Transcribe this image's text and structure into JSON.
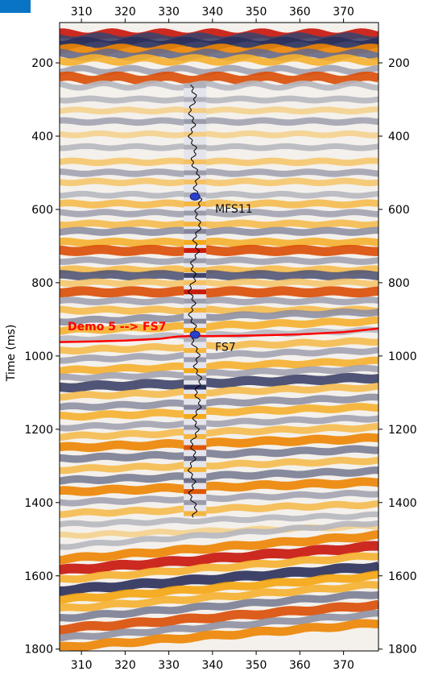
{
  "colors": {
    "corner_badge": "#0a74c4",
    "horizon": "#ff0000",
    "well_marker": "#2b3fcf",
    "well_log": "#000000",
    "seismic_positive": "#f5a000",
    "seismic_negative": "#2a2f5a",
    "seismic_zero": "#f4f1ec"
  },
  "chart_data": {
    "type": "heatmap",
    "subtype": "seismic-section-with-well",
    "ylabel": "Time (ms)",
    "xlabel": "",
    "xlim": [
      305,
      378
    ],
    "ylim": [
      1805,
      90
    ],
    "y_inverted": true,
    "x_ticks": [
      310,
      320,
      330,
      340,
      350,
      360,
      370
    ],
    "x_tick_labels": [
      "310",
      "320",
      "330",
      "340",
      "350",
      "360",
      "370"
    ],
    "y_ticks": [
      200,
      400,
      600,
      800,
      1000,
      1200,
      1400,
      1600,
      1800
    ],
    "y_tick_labels": [
      "200",
      "400",
      "600",
      "800",
      "1000",
      "1200",
      "1400",
      "1600",
      "1800"
    ],
    "ticks_on_all_sides": true,
    "grid": false,
    "horizon": {
      "label": "Demo 5 --> FS7",
      "x": [
        305,
        310,
        320,
        328,
        332,
        336,
        340,
        350,
        360,
        370,
        378
      ],
      "y": [
        962,
        961,
        958,
        953,
        947,
        945,
        946,
        944,
        941,
        935,
        925
      ]
    },
    "well": {
      "x": 336,
      "top_ms": 260,
      "bottom_ms": 1440,
      "markers": [
        {
          "name": "MFS11",
          "time_ms": 565
        },
        {
          "name": "FS7",
          "time_ms": 942
        }
      ]
    },
    "reflectors": [
      {
        "t": 125,
        "amp": 1.0
      },
      {
        "t": 135,
        "amp": -0.9
      },
      {
        "t": 148,
        "amp": -1.0
      },
      {
        "t": 165,
        "amp": 0.8
      },
      {
        "t": 178,
        "amp": -0.7
      },
      {
        "t": 192,
        "amp": 0.6
      },
      {
        "t": 220,
        "amp": -0.4
      },
      {
        "t": 242,
        "amp": 0.9
      },
      {
        "t": 262,
        "amp": -0.3
      },
      {
        "t": 300,
        "amp": -0.3
      },
      {
        "t": 330,
        "amp": 0.3
      },
      {
        "t": 360,
        "amp": -0.4
      },
      {
        "t": 395,
        "amp": 0.3
      },
      {
        "t": 430,
        "amp": -0.3
      },
      {
        "t": 470,
        "amp": 0.4
      },
      {
        "t": 500,
        "amp": -0.4
      },
      {
        "t": 525,
        "amp": 0.4
      },
      {
        "t": 560,
        "amp": -0.3
      },
      {
        "t": 585,
        "amp": 0.5
      },
      {
        "t": 610,
        "amp": -0.4
      },
      {
        "t": 640,
        "amp": 0.5
      },
      {
        "t": 660,
        "amp": -0.5
      },
      {
        "t": 690,
        "amp": 0.6
      },
      {
        "t": 712,
        "amp": 0.9
      },
      {
        "t": 740,
        "amp": -0.4
      },
      {
        "t": 765,
        "amp": 0.5
      },
      {
        "t": 780,
        "amp": -0.8
      },
      {
        "t": 800,
        "amp": 0.4
      },
      {
        "t": 825,
        "amp": 0.9
      },
      {
        "t": 850,
        "amp": -0.4
      },
      {
        "t": 875,
        "amp": 0.5
      },
      {
        "t": 905,
        "amp": -0.5
      },
      {
        "t": 930,
        "amp": 0.6
      },
      {
        "t": 955,
        "amp": -0.3
      },
      {
        "t": 985,
        "amp": 0.5
      },
      {
        "t": 1010,
        "amp": -0.4
      },
      {
        "t": 1040,
        "amp": 0.6
      },
      {
        "t": 1060,
        "amp": -0.4
      },
      {
        "t": 1085,
        "amp": -0.9
      },
      {
        "t": 1110,
        "amp": 0.5
      },
      {
        "t": 1140,
        "amp": -0.5
      },
      {
        "t": 1165,
        "amp": 0.6
      },
      {
        "t": 1195,
        "amp": -0.4
      },
      {
        "t": 1220,
        "amp": 0.5
      },
      {
        "t": 1250,
        "amp": 0.8
      },
      {
        "t": 1280,
        "amp": -0.6
      },
      {
        "t": 1310,
        "amp": 0.5
      },
      {
        "t": 1340,
        "amp": -0.6
      },
      {
        "t": 1370,
        "amp": 0.8
      },
      {
        "t": 1400,
        "amp": -0.4
      },
      {
        "t": 1430,
        "amp": 0.5
      },
      {
        "t": 1460,
        "amp": -0.3
      },
      {
        "t": 1490,
        "amp": 0.3
      },
      {
        "t": 1520,
        "amp": -0.3
      },
      {
        "t": 1555,
        "amp": 0.8
      },
      {
        "t": 1585,
        "amp": 1.0
      },
      {
        "t": 1610,
        "amp": 0.6
      },
      {
        "t": 1640,
        "amp": -1.0
      },
      {
        "t": 1665,
        "amp": 0.7
      },
      {
        "t": 1690,
        "amp": 0.6
      },
      {
        "t": 1715,
        "amp": -0.6
      },
      {
        "t": 1745,
        "amp": 0.9
      },
      {
        "t": 1770,
        "amp": -0.5
      },
      {
        "t": 1795,
        "amp": 0.8
      }
    ]
  }
}
